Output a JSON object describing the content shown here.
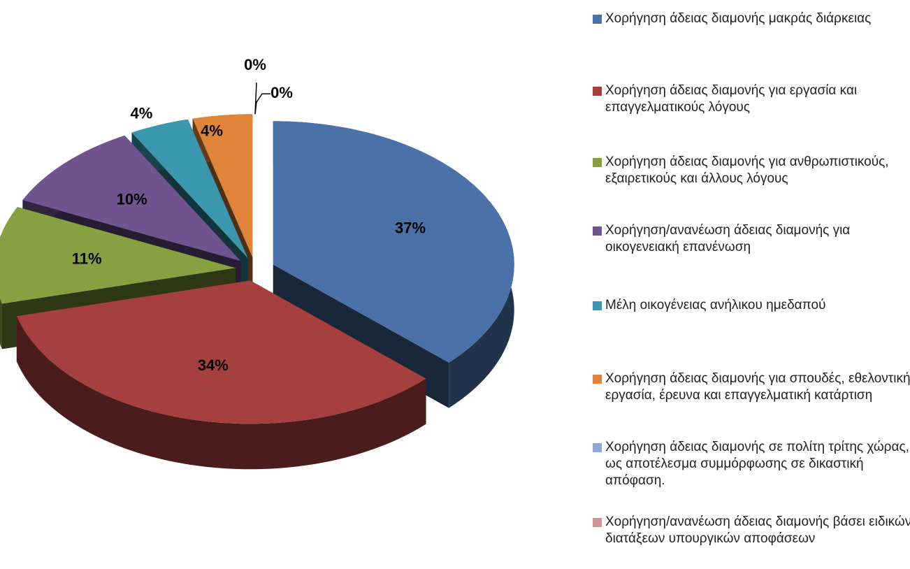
{
  "chart_data": {
    "type": "pie",
    "series": [
      {
        "name": "Χορήγηση άδειας διαμονής μακράς διάρκειας",
        "color": "#4a72a8",
        "values": [
          37
        ],
        "value_labels": [
          "37%"
        ]
      },
      {
        "name": "Χορήγηση άδειας διαμονής για εργασία και επαγγελματικούς λόγους",
        "color": "#a6403e",
        "values": [
          34
        ],
        "value_labels": [
          "34%"
        ]
      },
      {
        "name": "Χορήγηση άδειας διαμονής για ανθρωπιστικούς, εξαιρετικούς και άλλους λόγους",
        "color": "#86a042",
        "values": [
          11
        ],
        "value_labels": [
          "11%"
        ]
      },
      {
        "name": "Χορήγηση/ανανέωση άδειας διαμονής για οικογενειακή επανένωση",
        "color": "#6f5490",
        "values": [
          10
        ],
        "value_labels": [
          "10%"
        ]
      },
      {
        "name": "Μέλη οικογένειας ανήλικου ημεδαπού",
        "color": "#3a97ae",
        "values": [
          4
        ],
        "value_labels": [
          "4%"
        ]
      },
      {
        "name": " Χορήγηση άδειας διαμονής για σπουδές, εθελοντική εργασία, έρευνα και επαγγελματική κατάρτιση",
        "color": "#e0843a",
        "values": [
          4
        ],
        "value_labels": [
          "4%"
        ]
      },
      {
        "name": "Χορήγηση άδειας διαμονής σε πολίτη τρίτης χώρας, ως αποτέλεσμα συμμόρφωσης σε δικαστική απόφαση.",
        "color": "#8fa9d2",
        "values": [
          0
        ],
        "value_labels": [
          "0%"
        ]
      },
      {
        "name": "Χορήγηση/ανανέωση άδειας διαμονής βάσει ειδικών διατάξεων υπουργικών αποφάσεων",
        "color": "#d39392",
        "values": [
          0
        ],
        "value_labels": [
          "0%"
        ]
      }
    ]
  }
}
